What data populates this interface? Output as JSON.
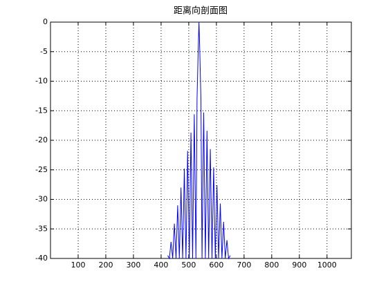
{
  "chart_data": {
    "type": "line",
    "title": "距离向剖面图",
    "x": [
      424,
      430,
      436,
      442,
      448,
      454,
      460,
      466,
      472,
      478,
      484,
      490,
      496,
      502,
      508,
      514,
      520,
      526,
      530,
      534,
      537,
      540,
      544,
      548,
      554,
      560,
      566,
      572,
      578,
      584,
      590,
      596,
      602,
      608,
      614,
      620,
      626,
      632,
      638,
      644,
      650
    ],
    "series": [
      {
        "color": "#0000ff",
        "values": [
          -39.5,
          -40,
          -37.2,
          -40,
          -34.1,
          -40,
          -31.0,
          -40,
          -28.0,
          -40,
          -24.8,
          -40,
          -21.8,
          -40,
          -18.7,
          -40,
          -15.6,
          -40,
          -13,
          -5,
          0,
          -5,
          -13,
          -40,
          -15.3,
          -40,
          -18.4,
          -40,
          -21.5,
          -40,
          -24.6,
          -40,
          -27.6,
          -40,
          -30.7,
          -40,
          -33.8,
          -40,
          -36.9,
          -40,
          -39.5
        ]
      }
    ],
    "xlim": [
      0,
      1088
    ],
    "ylim": [
      -40,
      0
    ],
    "xticks": [
      100,
      200,
      300,
      400,
      500,
      600,
      700,
      800,
      900,
      1000
    ],
    "yticks": [
      0,
      -5,
      -10,
      -15,
      -20,
      -25,
      -30,
      -35,
      -40
    ],
    "grid": true
  }
}
